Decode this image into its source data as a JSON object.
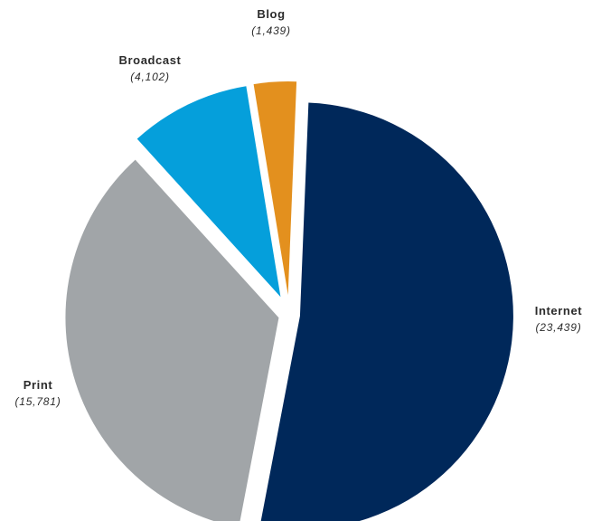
{
  "chart_data": {
    "type": "pie",
    "series": [
      {
        "label": "Internet",
        "value": 23439,
        "value_label": "(23,439)",
        "color": "#00285a"
      },
      {
        "label": "Print",
        "value": 15781,
        "value_label": "(15,781)",
        "color": "#a1a5a8"
      },
      {
        "label": "Broadcast",
        "value": 4102,
        "value_label": "(4,102)",
        "color": "#059fdb"
      },
      {
        "label": "Blog",
        "value": 1439,
        "value_label": "(1,439)",
        "color": "#e3901e"
      }
    ],
    "exploded": true,
    "legend": "none"
  }
}
